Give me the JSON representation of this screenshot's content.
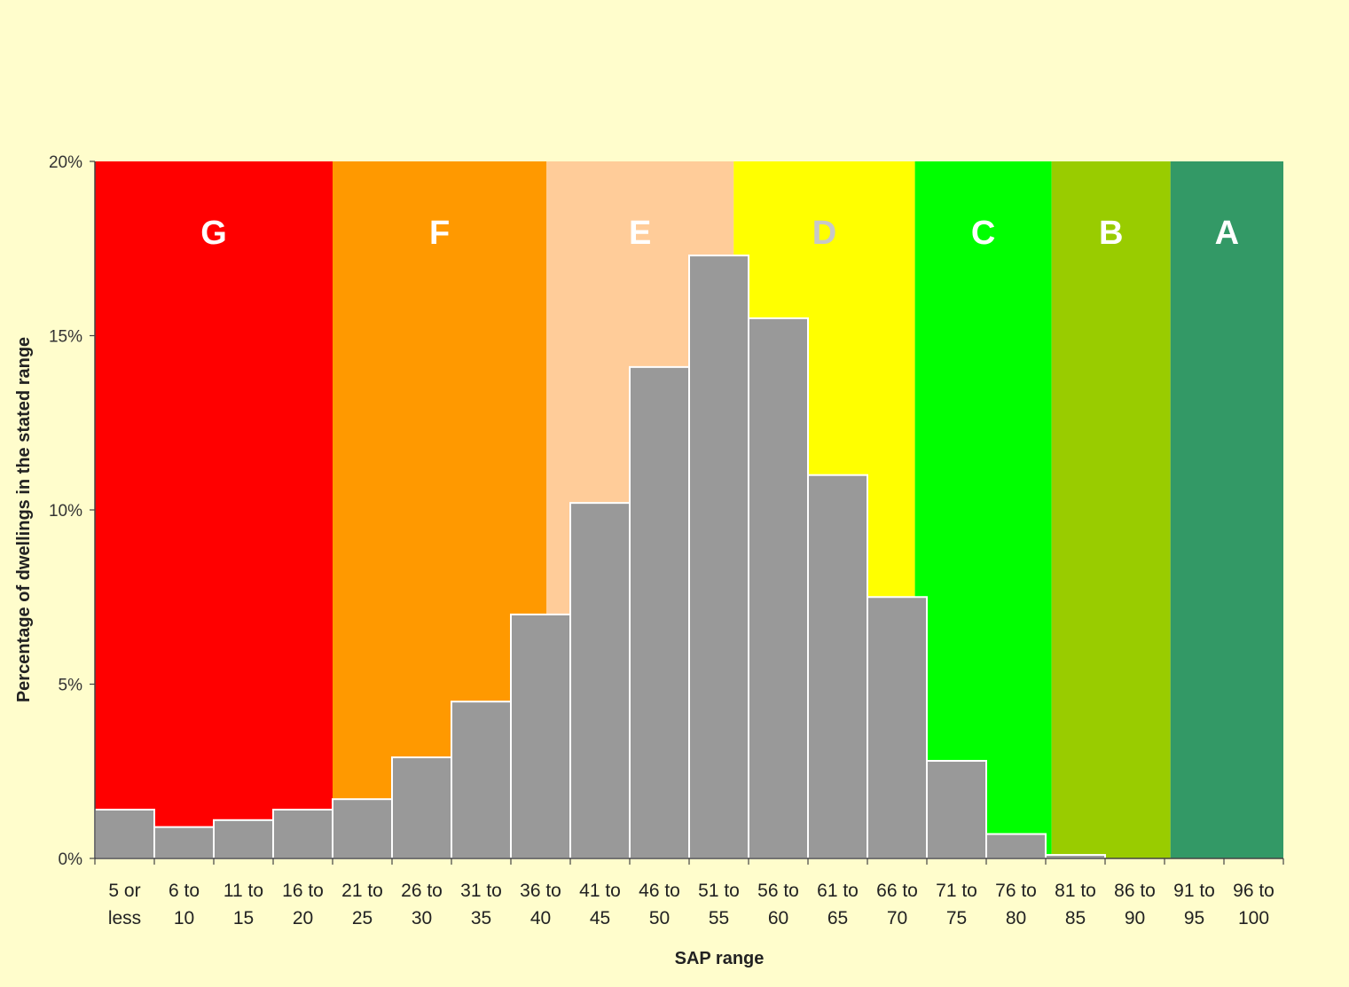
{
  "chart_data": {
    "type": "bar",
    "xlabel": "SAP range",
    "ylabel": "Percentage of dwellings in the stated range",
    "ylim": [
      0,
      20
    ],
    "y_ticks": [
      "0%",
      "5%",
      "10%",
      "15%",
      "20%"
    ],
    "categories": [
      [
        "5 or",
        "less"
      ],
      [
        "6 to",
        "10"
      ],
      [
        "11 to",
        "15"
      ],
      [
        "16 to",
        "20"
      ],
      [
        "21 to",
        "25"
      ],
      [
        "26 to",
        "30"
      ],
      [
        "31 to",
        "35"
      ],
      [
        "36 to",
        "40"
      ],
      [
        "41 to",
        "45"
      ],
      [
        "46 to",
        "50"
      ],
      [
        "51 to",
        "55"
      ],
      [
        "56 to",
        "60"
      ],
      [
        "61 to",
        "65"
      ],
      [
        "66 to",
        "70"
      ],
      [
        "71 to",
        "75"
      ],
      [
        "76 to",
        "80"
      ],
      [
        "81 to",
        "85"
      ],
      [
        "86 to",
        "90"
      ],
      [
        "91 to",
        "95"
      ],
      [
        "96 to",
        "100"
      ]
    ],
    "values": [
      1.4,
      0.9,
      1.1,
      1.4,
      1.7,
      2.9,
      4.5,
      7.0,
      10.2,
      14.1,
      17.3,
      15.5,
      11.0,
      7.5,
      2.8,
      0.7,
      0.1,
      0,
      0,
      0
    ],
    "bar_color": "#999999",
    "bands": [
      {
        "label": "G",
        "from": 0,
        "to": 4,
        "color": "#FF0000",
        "label_color": "#FFFFFF"
      },
      {
        "label": "F",
        "from": 4,
        "to": 7.6,
        "color": "#FF9900",
        "label_color": "#FFFFFF"
      },
      {
        "label": "E",
        "from": 7.6,
        "to": 10.75,
        "color": "#FFCC99",
        "label_color": "#FFFFFF"
      },
      {
        "label": "D",
        "from": 10.75,
        "to": 13.8,
        "color": "#FFFF00",
        "label_color": "#C8C8C8"
      },
      {
        "label": "C",
        "from": 13.8,
        "to": 16.1,
        "color": "#00FF00",
        "label_color": "#FFFFFF"
      },
      {
        "label": "B",
        "from": 16.1,
        "to": 18.1,
        "color": "#99CC00",
        "label_color": "#FFFFFF"
      },
      {
        "label": "A",
        "from": 18.1,
        "to": 20,
        "color": "#339966",
        "label_color": "#FFFFFF"
      }
    ]
  }
}
